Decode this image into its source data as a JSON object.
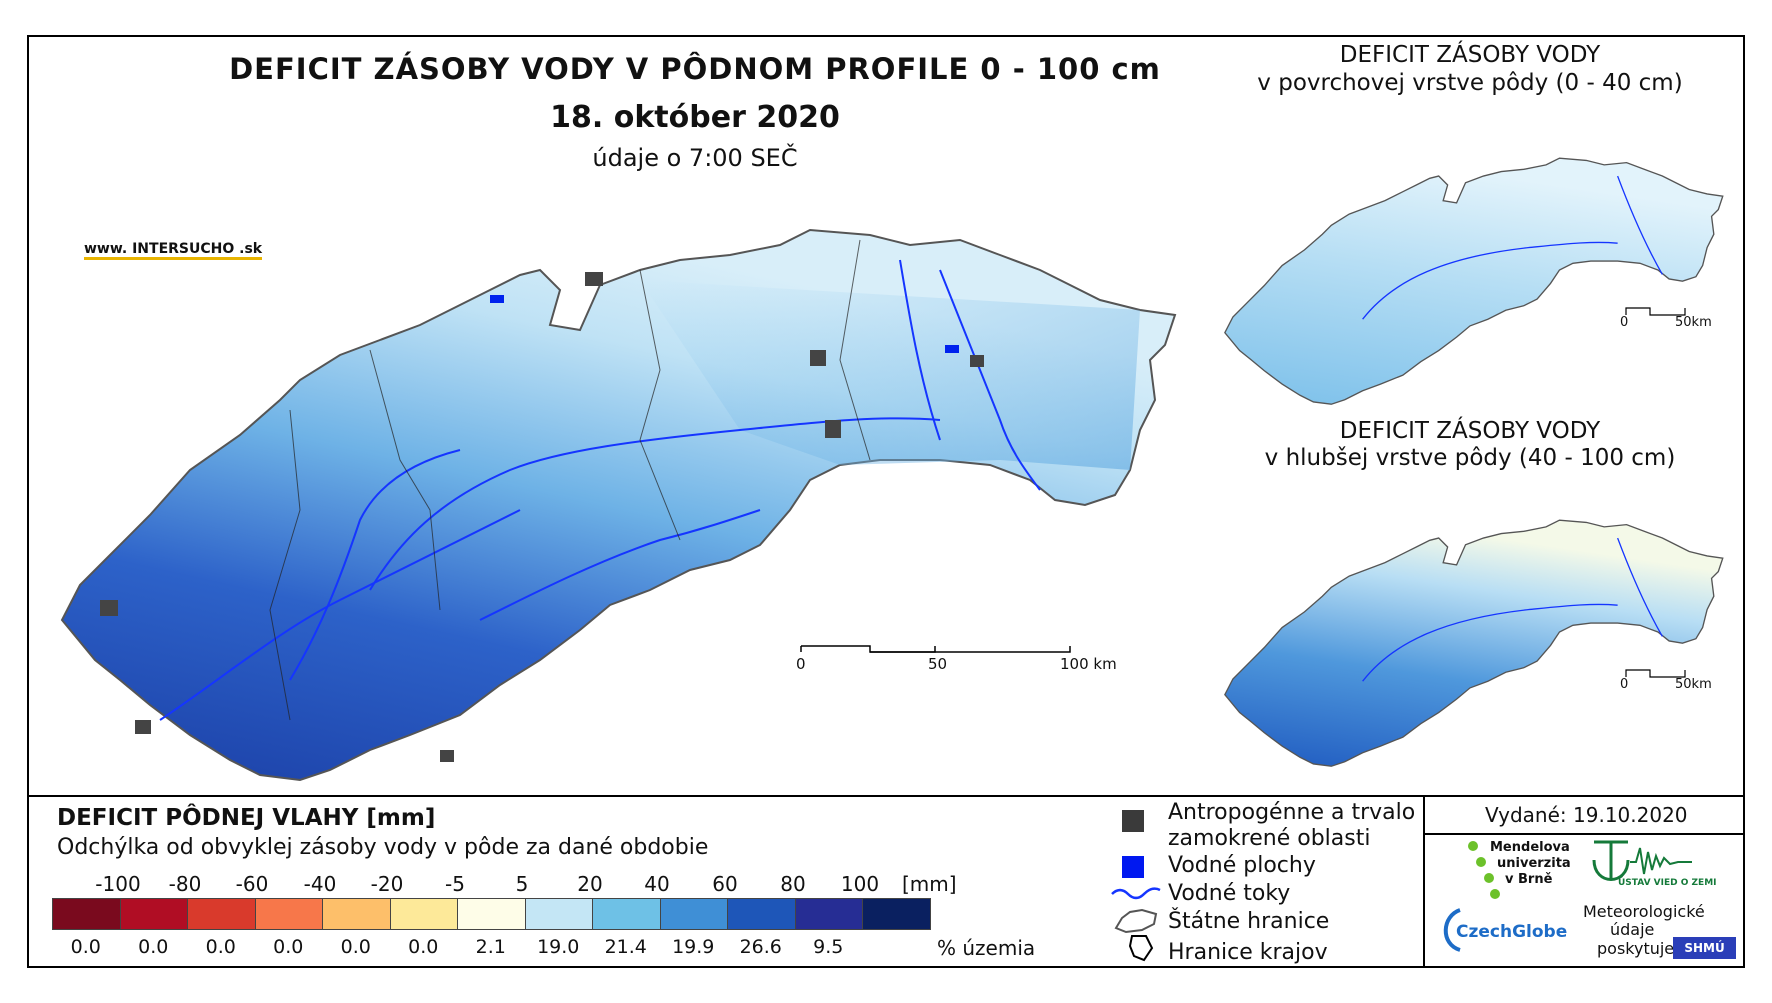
{
  "header": {
    "title": "DEFICIT ZÁSOBY VODY V PÔDNOM PROFILE 0 - 100 cm",
    "date": "18. október 2020",
    "time_note": "údaje o 7:00 SEČ",
    "website": "www. INTERSUCHO .sk"
  },
  "side_maps": [
    {
      "title_line1": "DEFICIT ZÁSOBY VODY",
      "title_line2": "v povrchovej vrstve pôdy (0 - 40 cm)",
      "scale_0": "0",
      "scale_50": "50km"
    },
    {
      "title_line1": "DEFICIT ZÁSOBY VODY",
      "title_line2": "v hlubšej vrstve pôdy (40 - 100 cm)",
      "scale_0": "0",
      "scale_50": "50km"
    }
  ],
  "main_scale": {
    "s0": "0",
    "s50": "50",
    "s100": "100 km"
  },
  "legend": {
    "title": "DEFICIT PÔDNEJ VLAHY [mm]",
    "subtitle": "Odchýlka od obvyklej zásoby vody v pôde za dané obdobie",
    "unit": "[mm]",
    "pct_unit": "% územia",
    "thresholds": [
      "-100",
      "-80",
      "-60",
      "-40",
      "-20",
      "-5",
      "5",
      "20",
      "40",
      "60",
      "80",
      "100"
    ],
    "classes": [
      {
        "color": "#7a0a1e",
        "pct": "0.0"
      },
      {
        "color": "#b00d24",
        "pct": "0.0"
      },
      {
        "color": "#d93a2c",
        "pct": "0.0"
      },
      {
        "color": "#f7774a",
        "pct": "0.0"
      },
      {
        "color": "#fdbf6a",
        "pct": "0.0"
      },
      {
        "color": "#fde999",
        "pct": "0.0"
      },
      {
        "color": "#fefde8",
        "pct": "2.1"
      },
      {
        "color": "#c4e6f5",
        "pct": "19.0"
      },
      {
        "color": "#6ec1e6",
        "pct": "21.4"
      },
      {
        "color": "#3f8fd6",
        "pct": "19.9"
      },
      {
        "color": "#1e56b8",
        "pct": "26.6"
      },
      {
        "color": "#262d94",
        "pct": "9.5"
      },
      {
        "color": "#0a2060",
        "pct": ""
      }
    ]
  },
  "symbols": {
    "anthropogenic": "Antropogénne a trvalo zamokrené oblasti",
    "water_areas": "Vodné plochy",
    "rivers": "Vodné toky",
    "state_border": "Štátne hranice",
    "regions": "Hranice krajov"
  },
  "issued": "Vydané: 19.10.2020",
  "logos": {
    "mendel1": "Mendelova",
    "mendel2": "univerzita",
    "mendel3": "v Brně",
    "ustav": "ÚSTAV VIED O ZEMI",
    "czechglobe": "CzechGlobe",
    "meteo1": "Meteorologické",
    "meteo2": "údaje",
    "meteo3": "poskytuje:",
    "shmu": "SHMÚ"
  }
}
